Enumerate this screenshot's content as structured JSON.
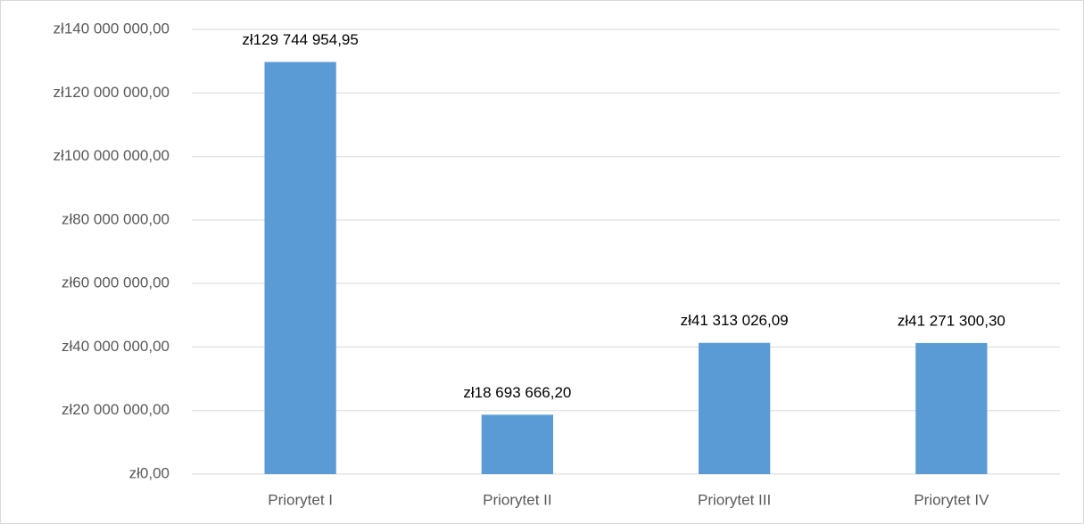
{
  "chart_data": {
    "type": "bar",
    "categories": [
      "Priorytet I",
      "Priorytet II",
      "Priorytet III",
      "Priorytet IV"
    ],
    "values": [
      129744954.95,
      18693666.2,
      41313026.09,
      41271300.3
    ],
    "value_labels": [
      "zł129 744 954,95",
      "zł18 693 666,20",
      "zł41 313 026,09",
      "zł41 271 300,30"
    ],
    "color": "#5b9bd5",
    "ylim": [
      0,
      140000000
    ],
    "yticks": [
      {
        "value": 0,
        "label": "zł0,00"
      },
      {
        "value": 20000000,
        "label": "zł20 000 000,00"
      },
      {
        "value": 40000000,
        "label": "zł40 000 000,00"
      },
      {
        "value": 60000000,
        "label": "zł60 000 000,00"
      },
      {
        "value": 80000000,
        "label": "zł80 000 000,00"
      },
      {
        "value": 100000000,
        "label": "zł100 000 000,00"
      },
      {
        "value": 120000000,
        "label": "zł120 000 000,00"
      },
      {
        "value": 140000000,
        "label": "zł140 000 000,00"
      }
    ],
    "grid": true
  }
}
